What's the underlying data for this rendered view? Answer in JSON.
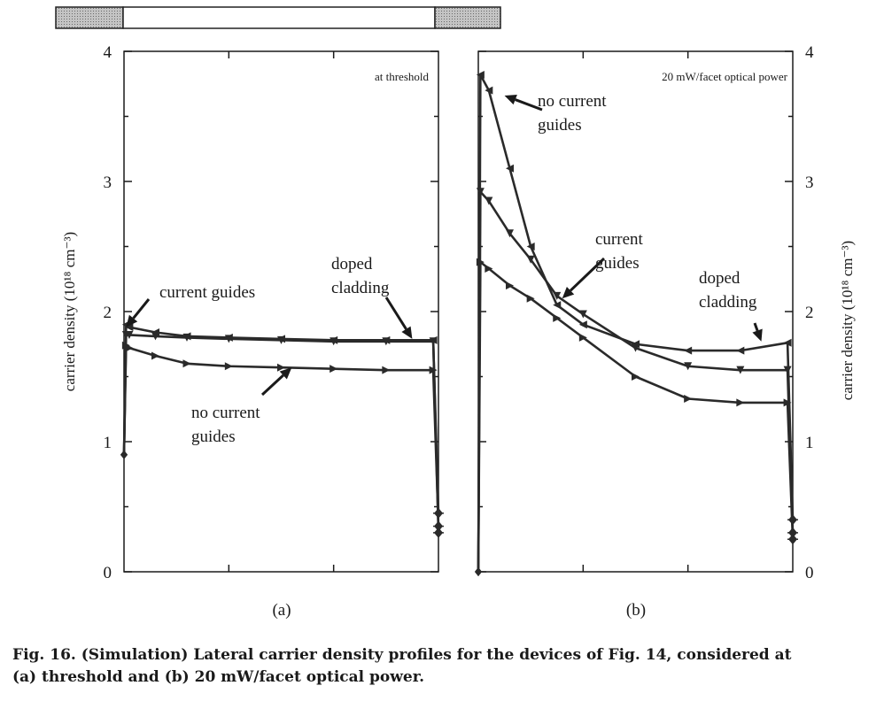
{
  "device_bar": {
    "colors": {
      "cladding": "#b8b8b8",
      "core": "#ffffff",
      "outline": "#222222"
    }
  },
  "colors": {
    "curve": "#2a2a2a",
    "axis": "#1a1a1a"
  },
  "panels": [
    {
      "id": "a",
      "label": "(a)",
      "condition": "at threshold",
      "annotations": [
        {
          "id": "current-guides",
          "lines": [
            "current guides"
          ],
          "arrow_to": [
            0.02,
            1.88
          ]
        },
        {
          "id": "doped-cladding",
          "lines": [
            "doped",
            "cladding"
          ],
          "arrow_to": [
            2.75,
            1.79
          ]
        },
        {
          "id": "no-current-guides",
          "lines": [
            "no current",
            "guides"
          ],
          "arrow_to": [
            1.6,
            1.57
          ]
        }
      ]
    },
    {
      "id": "b",
      "label": "(b)",
      "condition": "20 mW/facet optical power",
      "annotations": [
        {
          "id": "no-current-guides",
          "lines": [
            "no current",
            "guides"
          ],
          "arrow_to": [
            0.25,
            3.66
          ]
        },
        {
          "id": "current-guides",
          "lines": [
            "current",
            "guides"
          ],
          "arrow_to": [
            0.8,
            2.1
          ]
        },
        {
          "id": "doped-cladding",
          "lines": [
            "doped",
            "cladding"
          ],
          "arrow_to": [
            2.7,
            1.77
          ]
        }
      ]
    }
  ],
  "chart_data": [
    {
      "type": "line",
      "panel": "a",
      "xlabel": "",
      "ylabel": "carrier density (10¹⁸ cm⁻³)",
      "yticks": [
        "0",
        "1",
        "2",
        "3",
        "4"
      ],
      "ylim": [
        0,
        4
      ],
      "xlim": [
        0,
        3
      ],
      "grid": false,
      "series": [
        {
          "x": [
            0,
            0.02,
            0.05,
            0.3,
            0.6,
            1.0,
            1.5,
            2.0,
            2.5,
            2.95,
            3.0
          ],
          "y": [
            0.9,
            1.9,
            1.88,
            1.84,
            1.81,
            1.8,
            1.79,
            1.78,
            1.78,
            1.78,
            0.3
          ]
        },
        {
          "x": [
            0,
            0.02,
            0.05,
            0.3,
            0.6,
            1.0,
            1.5,
            2.0,
            2.5,
            2.95,
            3.0
          ],
          "y": [
            0.9,
            1.82,
            1.82,
            1.81,
            1.8,
            1.79,
            1.78,
            1.77,
            1.77,
            1.77,
            0.45
          ]
        },
        {
          "x": [
            0,
            0.02,
            0.05,
            0.3,
            0.6,
            1.0,
            1.5,
            2.0,
            2.5,
            2.95,
            3.0
          ],
          "y": [
            0.9,
            1.74,
            1.72,
            1.66,
            1.6,
            1.58,
            1.57,
            1.56,
            1.55,
            1.55,
            0.35
          ]
        }
      ]
    },
    {
      "type": "line",
      "panel": "b",
      "xlabel": "",
      "ylabel": "carrier density (10¹⁸ cm⁻³)",
      "yticks": [
        "0",
        "1",
        "2",
        "3",
        "4"
      ],
      "ylim": [
        0,
        4
      ],
      "xlim": [
        0,
        3
      ],
      "grid": false,
      "series": [
        {
          "x": [
            0,
            0.02,
            0.1,
            0.3,
            0.5,
            0.75,
            1.0,
            1.5,
            2.0,
            2.5,
            2.95,
            3.0
          ],
          "y": [
            0,
            3.82,
            3.7,
            3.1,
            2.5,
            2.05,
            1.9,
            1.75,
            1.7,
            1.7,
            1.76,
            0.4
          ]
        },
        {
          "x": [
            0,
            0.02,
            0.1,
            0.3,
            0.5,
            0.75,
            1.0,
            1.5,
            2.0,
            2.5,
            2.95,
            3.0
          ],
          "y": [
            0,
            2.92,
            2.85,
            2.6,
            2.4,
            2.12,
            1.98,
            1.72,
            1.58,
            1.55,
            1.55,
            0.3
          ]
        },
        {
          "x": [
            0,
            0.02,
            0.1,
            0.3,
            0.5,
            0.75,
            1.0,
            1.5,
            2.0,
            2.5,
            2.95,
            3.0
          ],
          "y": [
            0,
            2.38,
            2.33,
            2.2,
            2.1,
            1.95,
            1.8,
            1.5,
            1.33,
            1.3,
            1.3,
            0.25
          ]
        }
      ]
    }
  ],
  "caption": {
    "line1": "Fig. 16.   (Simulation) Lateral carrier density profiles for the devices of Fig. 14, considered at",
    "line2": "(a) threshold and (b) 20 mW/facet optical power."
  }
}
